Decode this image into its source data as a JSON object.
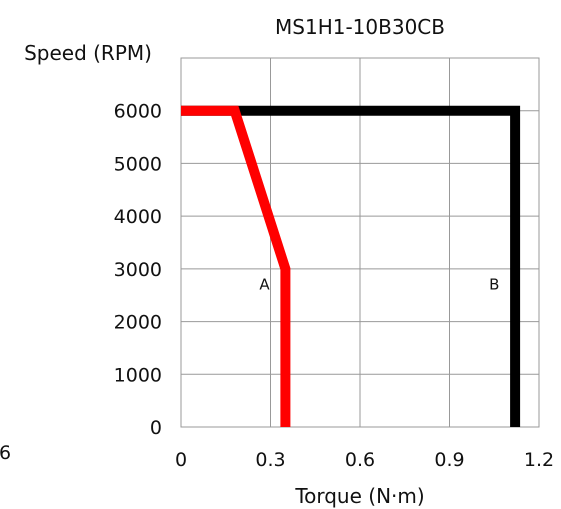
{
  "chart_data": {
    "type": "line",
    "title": "MS1H1-10B30CB",
    "xlabel": "Torque (N·m)",
    "ylabel": "Speed (RPM)",
    "xlim": [
      0,
      1.2
    ],
    "ylim": [
      0,
      7000
    ],
    "x_ticks": [
      "0",
      "0.3",
      "0.6",
      "0.9",
      "1.2"
    ],
    "y_ticks": [
      "0",
      "1000",
      "2000",
      "3000",
      "4000",
      "5000",
      "6000"
    ],
    "grid": true,
    "stray_label": "6",
    "series": [
      {
        "color": "#000000",
        "points": [
          [
            0,
            6000
          ],
          [
            1.12,
            6000
          ],
          [
            1.12,
            0
          ]
        ]
      },
      {
        "color": "#ff0000",
        "points": [
          [
            0,
            6000
          ],
          [
            0.18,
            6000
          ],
          [
            0.35,
            3000
          ],
          [
            0.35,
            0
          ]
        ]
      }
    ],
    "annotations": [
      {
        "text": "A",
        "x": 0.28,
        "y": 2700
      },
      {
        "text": "B",
        "x": 1.05,
        "y": 2700
      }
    ]
  }
}
